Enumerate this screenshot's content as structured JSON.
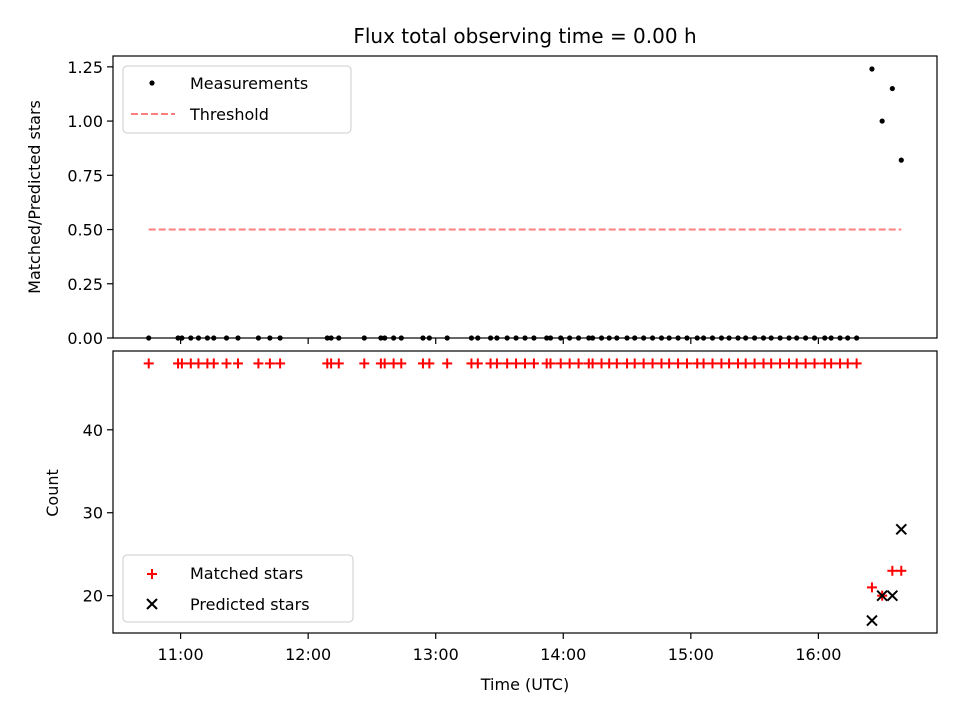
{
  "chart_data": [
    {
      "type": "scatter",
      "title": "Flux total observing time = 0.00 h",
      "xlabel": "",
      "ylabel": "Matched/Predicted stars",
      "x_unit": "hours UTC",
      "xlim": [
        10.47,
        16.93
      ],
      "ylim": [
        0,
        1.3
      ],
      "yticks": [
        0.0,
        0.25,
        0.5,
        0.75,
        1.0,
        1.25
      ],
      "ytick_labels": [
        "0.00",
        "0.25",
        "0.50",
        "0.75",
        "1.00",
        "1.25"
      ],
      "grid": false,
      "legend_position": "top-left",
      "series": [
        {
          "name": "Measurements",
          "kind": "scatter",
          "color": "#000000",
          "x": [
            10.75,
            10.98,
            11.01,
            11.08,
            11.14,
            11.21,
            11.26,
            11.36,
            11.45,
            11.61,
            11.7,
            11.78,
            12.15,
            12.18,
            12.24,
            12.44,
            12.57,
            12.6,
            12.67,
            12.73,
            12.9,
            12.95,
            13.09,
            13.28,
            13.33,
            13.43,
            13.48,
            13.56,
            13.63,
            13.7,
            13.77,
            13.87,
            13.9,
            13.98,
            14.05,
            14.12,
            14.2,
            14.23,
            14.3,
            14.36,
            14.42,
            14.5,
            14.56,
            14.63,
            14.7,
            14.77,
            14.83,
            14.9,
            14.97,
            15.05,
            15.1,
            15.17,
            15.24,
            15.3,
            15.37,
            15.43,
            15.5,
            15.57,
            15.63,
            15.7,
            15.77,
            15.83,
            15.9,
            15.97,
            16.05,
            16.1,
            16.17,
            16.23,
            16.3,
            16.42,
            16.5,
            16.58,
            16.65
          ],
          "y": [
            0,
            0,
            0,
            0,
            0,
            0,
            0,
            0,
            0,
            0,
            0,
            0,
            0,
            0,
            0,
            0,
            0,
            0,
            0,
            0,
            0,
            0,
            0,
            0,
            0,
            0,
            0,
            0,
            0,
            0,
            0,
            0,
            0,
            0,
            0,
            0,
            0,
            0,
            0,
            0,
            0,
            0,
            0,
            0,
            0,
            0,
            0,
            0,
            0,
            0,
            0,
            0,
            0,
            0,
            0,
            0,
            0,
            0,
            0,
            0,
            0,
            0,
            0,
            0,
            0,
            0,
            0,
            0,
            0,
            1.24,
            1.0,
            1.15,
            0.82
          ]
        },
        {
          "name": "Threshold",
          "kind": "dashed-line",
          "color": "#ff7f7f",
          "x": [
            10.75,
            16.65
          ],
          "y": [
            0.5,
            0.5
          ]
        }
      ]
    },
    {
      "type": "scatter",
      "title": "",
      "xlabel": "Time (UTC)",
      "ylabel": "Count",
      "x_unit": "hours UTC",
      "xlim": [
        10.47,
        16.93
      ],
      "ylim": [
        15.5,
        49.5
      ],
      "xticks": [
        11,
        12,
        13,
        14,
        15,
        16
      ],
      "xtick_labels": [
        "11:00",
        "12:00",
        "13:00",
        "14:00",
        "15:00",
        "16:00"
      ],
      "yticks": [
        20,
        30,
        40
      ],
      "ytick_labels": [
        "20",
        "30",
        "40"
      ],
      "grid": false,
      "legend_position": "bottom-left",
      "series": [
        {
          "name": "Matched stars",
          "kind": "plus",
          "color": "#ff0000",
          "x": [
            10.75,
            10.98,
            11.01,
            11.08,
            11.14,
            11.21,
            11.26,
            11.36,
            11.45,
            11.61,
            11.7,
            11.78,
            12.15,
            12.18,
            12.24,
            12.44,
            12.57,
            12.6,
            12.67,
            12.73,
            12.9,
            12.95,
            13.09,
            13.28,
            13.33,
            13.43,
            13.48,
            13.56,
            13.63,
            13.7,
            13.77,
            13.87,
            13.9,
            13.98,
            14.05,
            14.12,
            14.2,
            14.23,
            14.3,
            14.36,
            14.42,
            14.5,
            14.56,
            14.63,
            14.7,
            14.77,
            14.83,
            14.9,
            14.97,
            15.05,
            15.1,
            15.17,
            15.24,
            15.3,
            15.37,
            15.43,
            15.5,
            15.57,
            15.63,
            15.7,
            15.77,
            15.83,
            15.9,
            15.97,
            16.05,
            16.1,
            16.17,
            16.23,
            16.3,
            16.42,
            16.5,
            16.58,
            16.65
          ],
          "y": [
            48,
            48,
            48,
            48,
            48,
            48,
            48,
            48,
            48,
            48,
            48,
            48,
            48,
            48,
            48,
            48,
            48,
            48,
            48,
            48,
            48,
            48,
            48,
            48,
            48,
            48,
            48,
            48,
            48,
            48,
            48,
            48,
            48,
            48,
            48,
            48,
            48,
            48,
            48,
            48,
            48,
            48,
            48,
            48,
            48,
            48,
            48,
            48,
            48,
            48,
            48,
            48,
            48,
            48,
            48,
            48,
            48,
            48,
            48,
            48,
            48,
            48,
            48,
            48,
            48,
            48,
            48,
            48,
            48,
            21,
            20,
            23,
            23
          ]
        },
        {
          "name": "Predicted stars",
          "kind": "x",
          "color": "#000000",
          "x": [
            16.42,
            16.5,
            16.58,
            16.65
          ],
          "y": [
            17,
            20,
            20,
            28
          ]
        }
      ]
    }
  ]
}
